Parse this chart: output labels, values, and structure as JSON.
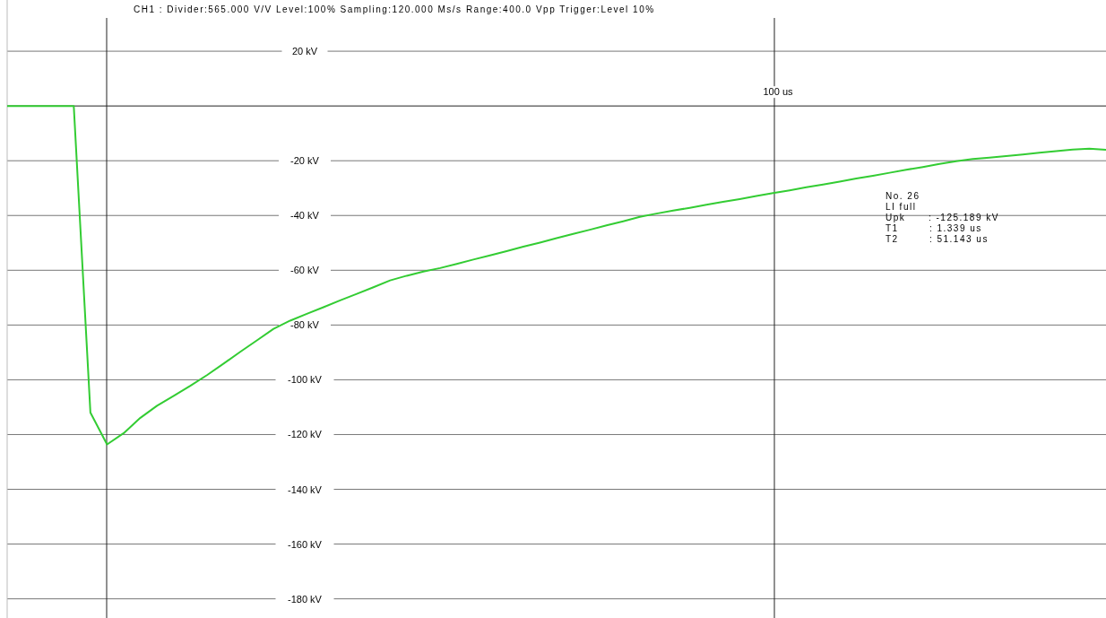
{
  "chart_data": {
    "type": "line",
    "title": "CH1 : Divider:565.000 V/V  Level:100%  Sampling:120.000 Ms/s  Range:400.0 Vpp  Trigger:Level 10%",
    "categories": [
      null,
      null,
      null,
      null,
      null,
      null,
      null,
      null,
      null,
      null,
      null,
      null,
      null,
      null,
      null,
      null,
      null,
      null,
      null,
      null,
      null,
      null,
      null,
      null,
      null,
      null,
      null,
      null,
      null,
      null,
      null,
      null,
      null,
      null,
      null,
      null,
      null,
      null,
      null,
      null,
      null,
      null,
      null,
      null,
      null,
      null,
      null,
      null,
      null,
      null,
      null,
      null,
      null,
      null,
      null,
      null,
      null,
      null,
      null,
      null,
      null,
      null,
      null,
      null,
      null,
      null,
      null
    ],
    "series": [
      {
        "color": "#33cc33",
        "values": [
          0,
          0,
          0,
          0,
          0,
          -112,
          -123.6,
          -119.5,
          -113.9,
          -109.5,
          -105.9,
          -102.2,
          -98.3,
          -94.1,
          -89.8,
          -85.6,
          -81.4,
          -78.4,
          -75.9,
          -73.5,
          -71,
          -68.6,
          -66.2,
          -63.7,
          -62,
          -60.5,
          -59.2,
          -57.7,
          -56.1,
          -54.6,
          -53,
          -51.4,
          -49.9,
          -48.3,
          -46.7,
          -45.2,
          -43.6,
          -42.1,
          -40.5,
          -39.3,
          -38.2,
          -37.2,
          -36.1,
          -35,
          -34,
          -32.9,
          -31.8,
          -30.8,
          -29.7,
          -28.7,
          -27.6,
          -26.5,
          -25.5,
          -24.4,
          -23.3,
          -22.3,
          -21.2,
          -20.2,
          -19.4,
          -18.9,
          -18.3,
          -17.7,
          -17.1,
          -16.5,
          -15.9,
          -15.6,
          -16
        ]
      }
    ],
    "ylim": [
      -187,
      38.7
    ],
    "yticks": [
      {
        "value": 20,
        "label": "20 kV"
      },
      {
        "value": 0,
        "label": null
      },
      {
        "value": -20,
        "label": "-20 kV"
      },
      {
        "value": -40,
        "label": "-40 kV"
      },
      {
        "value": -60,
        "label": "-60 kV"
      },
      {
        "value": -80,
        "label": "-80 kV"
      },
      {
        "value": -100,
        "label": "-100 kV"
      },
      {
        "value": -120,
        "label": "-120 kV"
      },
      {
        "value": -140,
        "label": "-140 kV"
      },
      {
        "value": -160,
        "label": "-160 kV"
      },
      {
        "value": -180,
        "label": "-180 kV"
      }
    ],
    "grid": "y",
    "line_style": "solid",
    "marker": "none",
    "annotations": [
      "100 us",
      "No. 26",
      "LI full",
      "Upk      : -125.189 kV",
      "T1        : 1.339 us",
      "T2        : 51.143 us"
    ]
  }
}
